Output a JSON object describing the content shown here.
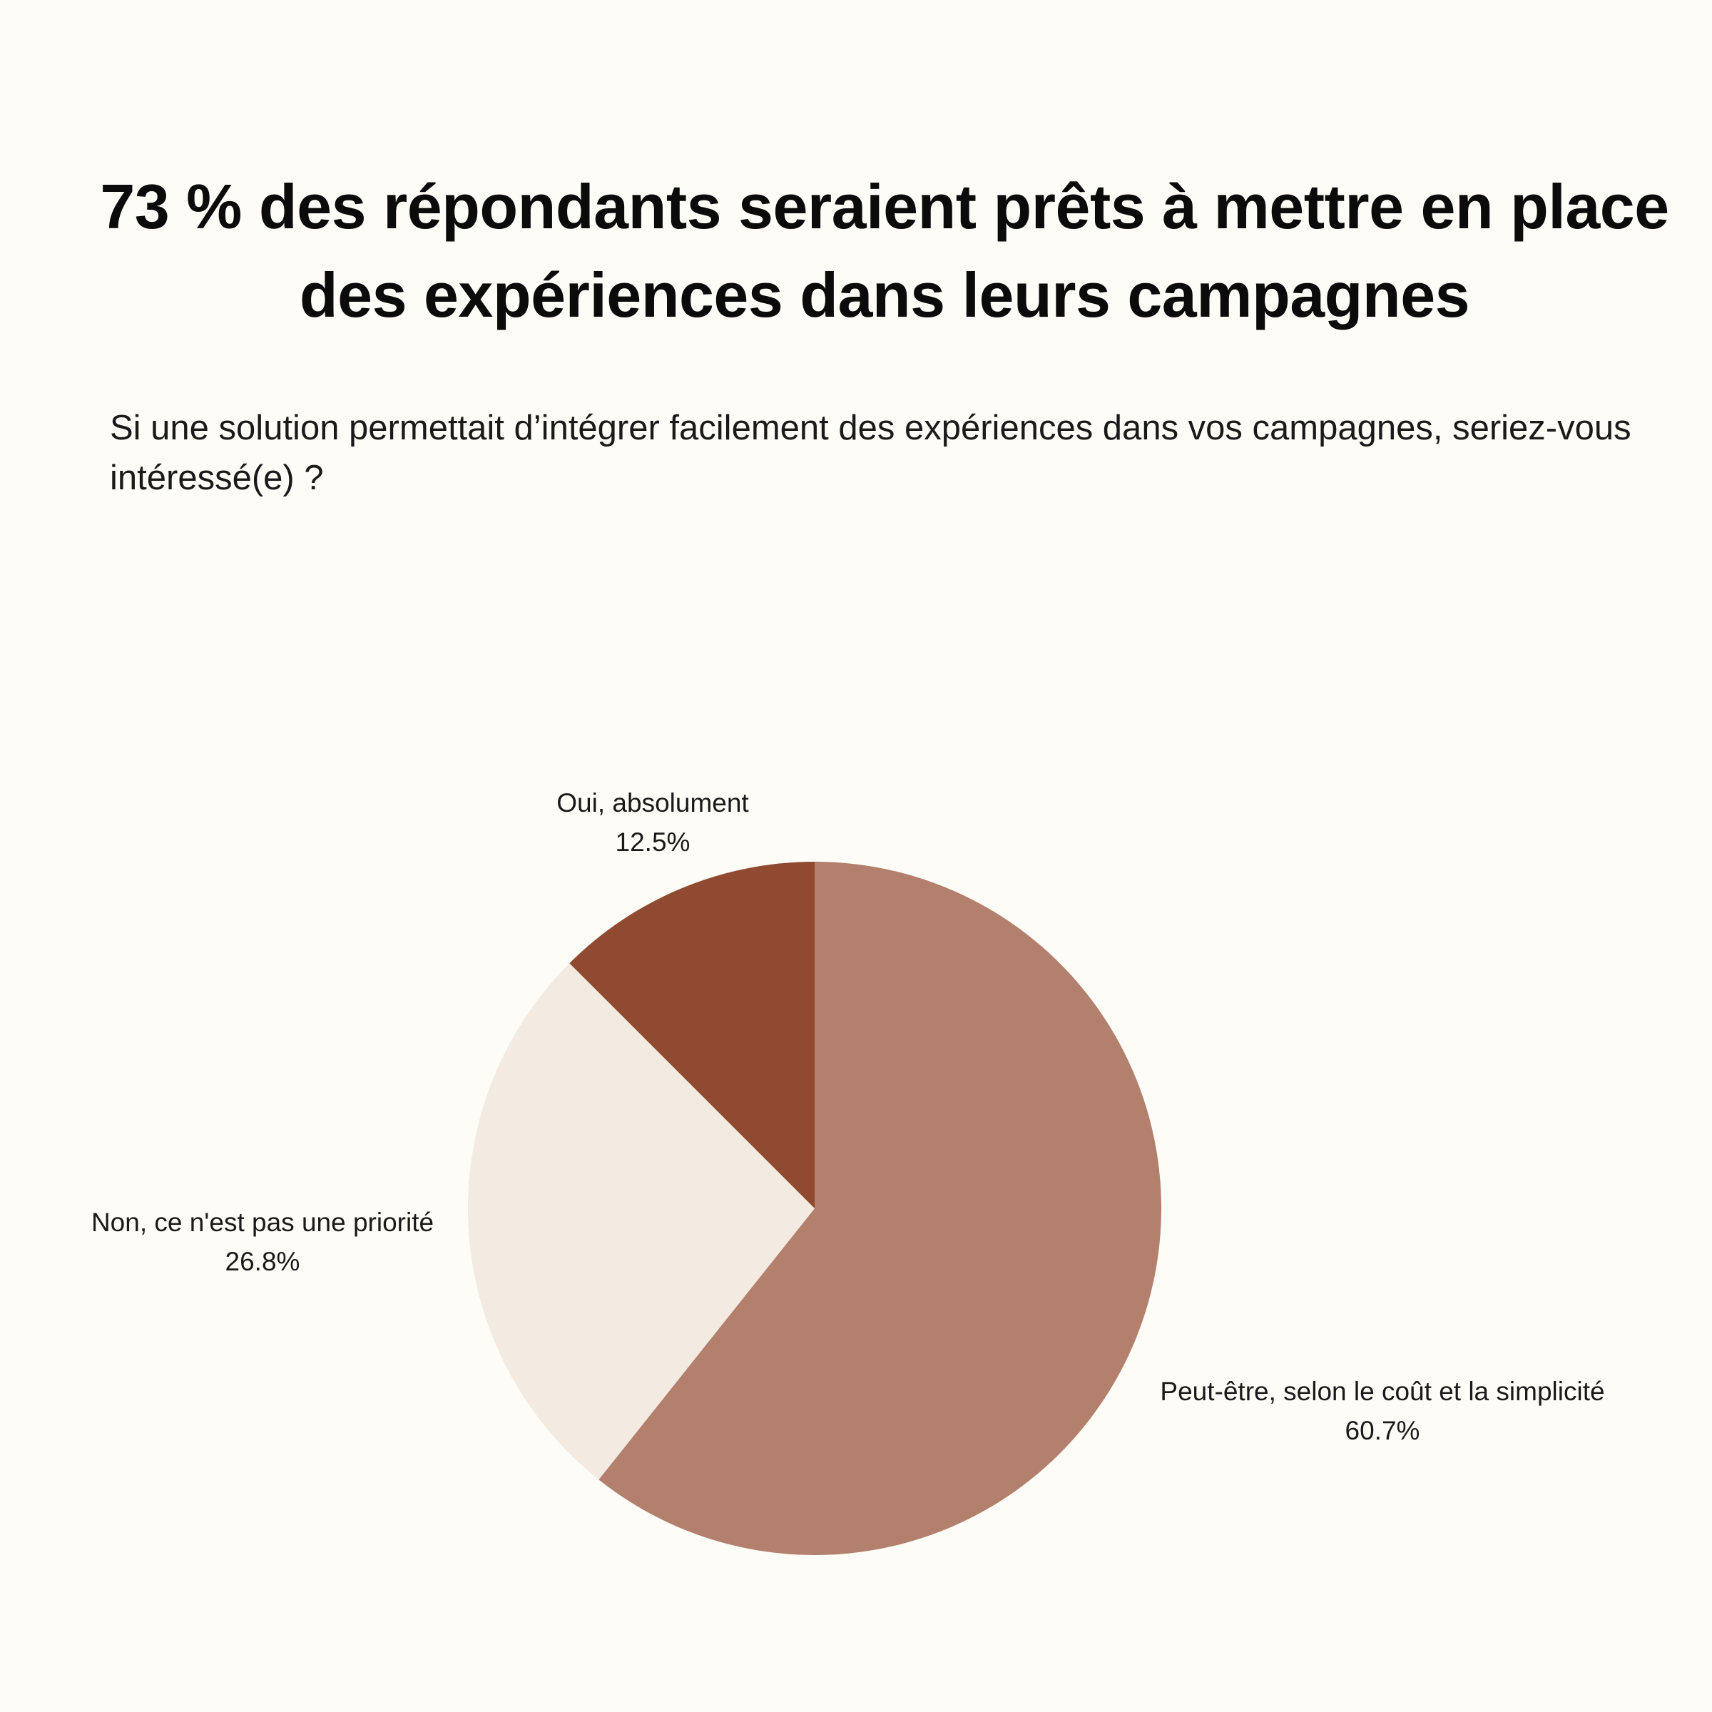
{
  "header": {
    "title": "73 % des répondants seraient prêts à mettre en place des expériences dans leurs campagnes",
    "question": "Si une solution permettait d’intégrer facilement des expériences dans vos campagnes, seriez-vous intéressé(e) ?"
  },
  "chart_data": {
    "type": "pie",
    "title": "73 % des répondants seraient prêts à mettre en place des expériences dans leurs campagnes",
    "subtitle": "Si une solution permettait d’intégrer facilement des expériences dans vos campagnes, seriez-vous intéressé(e) ?",
    "start_angle": "top (12 o'clock), clockwise",
    "slices": [
      {
        "label": "Peut-être, selon le coût et la simplicité",
        "value": 60.7,
        "value_label": "60.7%",
        "color": "#b3806e"
      },
      {
        "label": "Non, ce n'est pas une priorité",
        "value": 26.8,
        "value_label": "26.8%",
        "color": "#f3ebe2"
      },
      {
        "label": "Oui, absolument",
        "value": 12.5,
        "value_label": "12.5%",
        "color": "#8f4a31"
      }
    ]
  }
}
